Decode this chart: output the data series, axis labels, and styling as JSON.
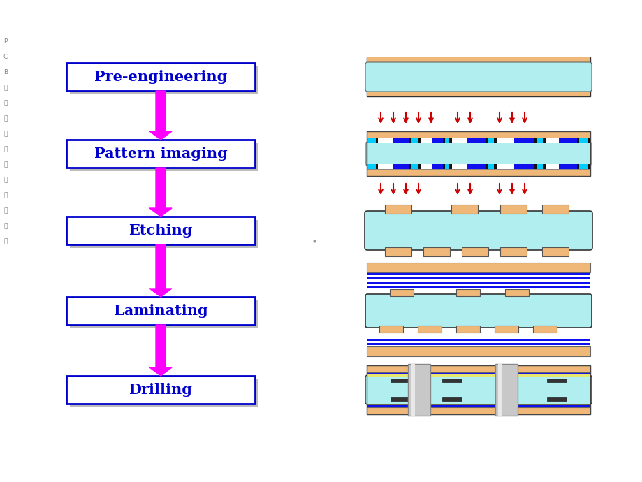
{
  "bg_color": "#ffffff",
  "steps": [
    "Pre-engineering",
    "Pattern imaging",
    "Etching",
    "Laminating",
    "Drilling"
  ],
  "step_box_color": "#ffffff",
  "step_box_edge": "#0000cc",
  "step_text_color": "#0000cc",
  "arrow_color": "#ff00ff",
  "shadow_color": "#bbbbbb",
  "pcb_cyan": "#b0eef0",
  "pcb_cyan_dark": "#80d8e0",
  "pcb_orange": "#f0b878",
  "pcb_blue": "#1010ee",
  "pcb_light_blue": "#00ccff",
  "pcb_black": "#101010",
  "pcb_white": "#ffffff",
  "pcb_gray": "#c8c8c8",
  "pcb_gray_dark": "#a0a0a0",
  "pcb_yellow": "#e8e870",
  "red_arrow": "#cc0000",
  "side_text_color": "#888888"
}
